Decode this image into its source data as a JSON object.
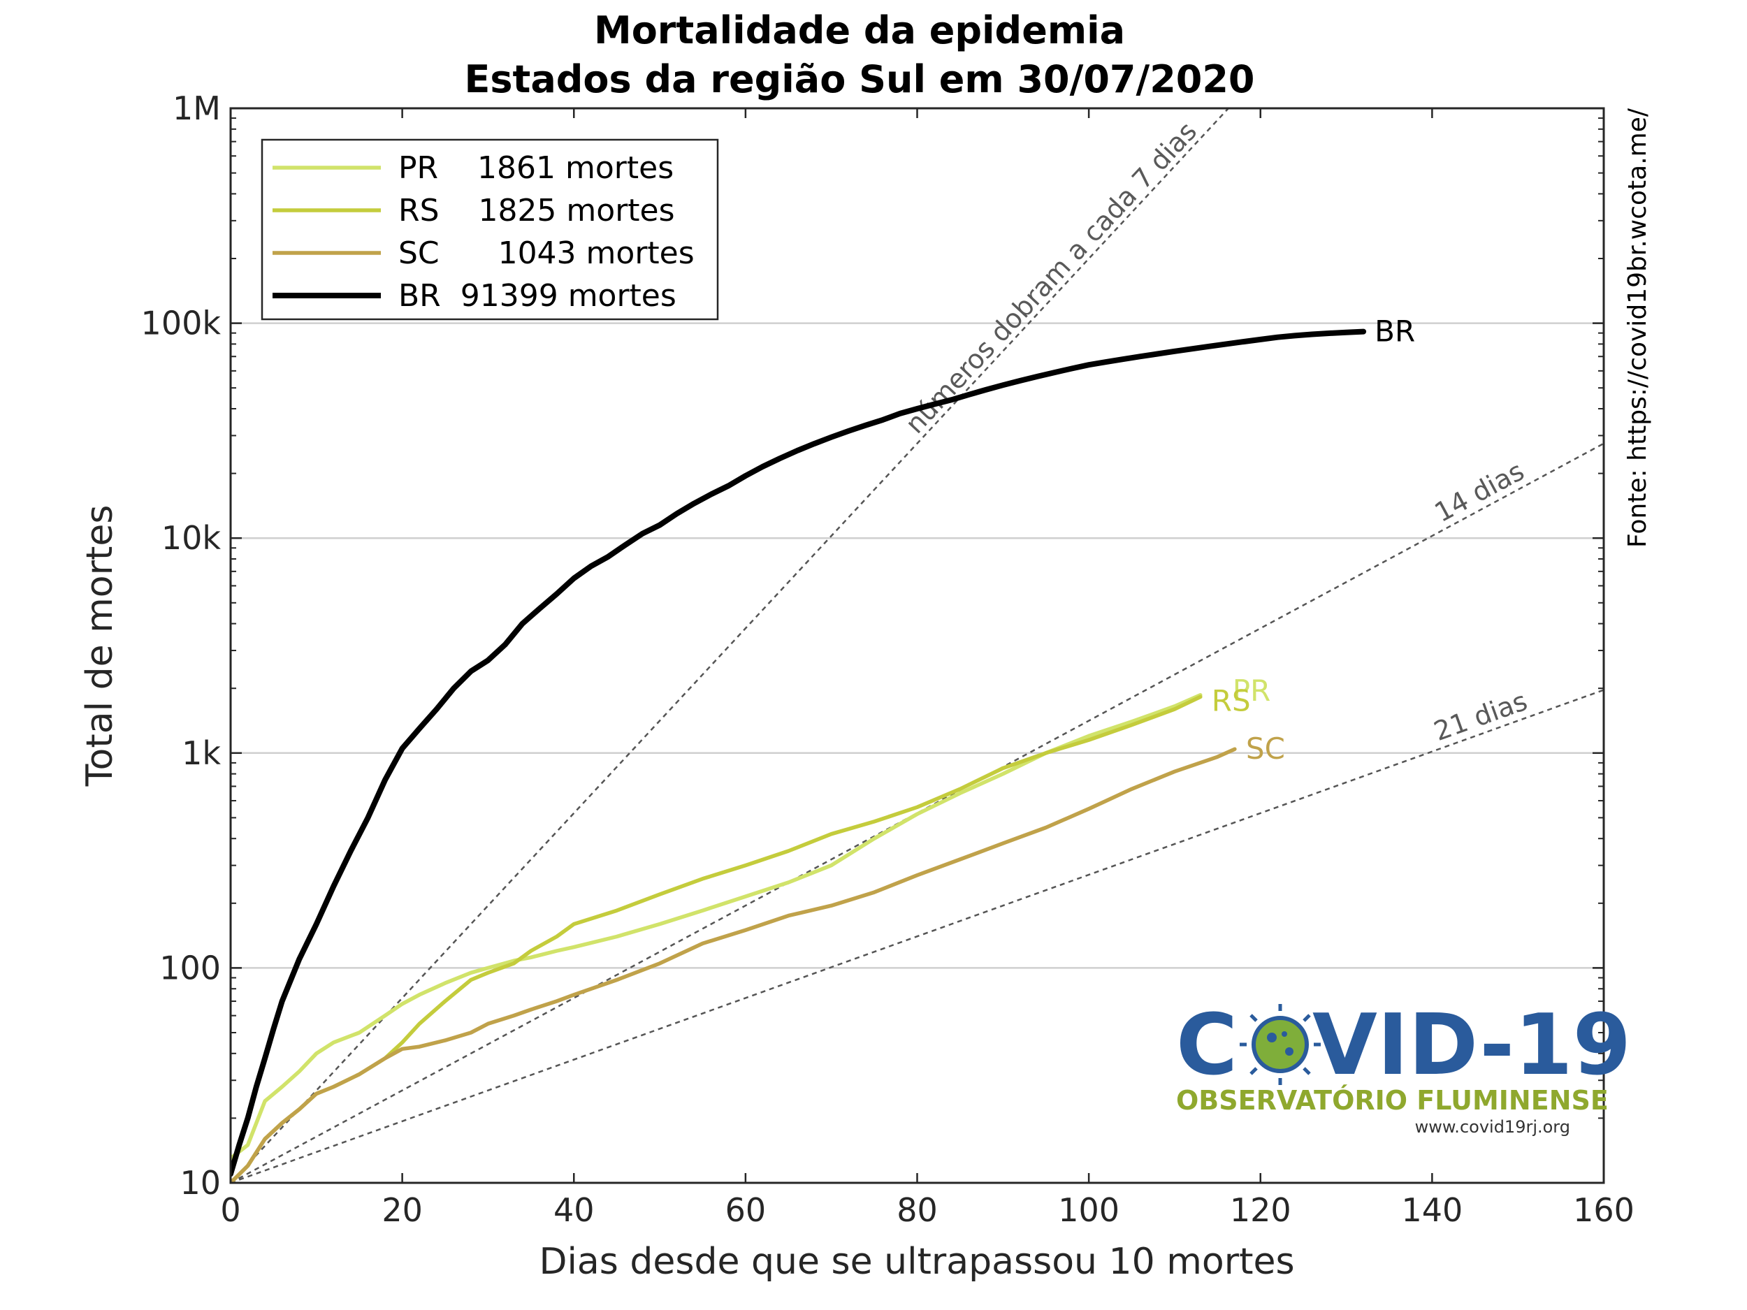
{
  "chart_data": {
    "type": "line",
    "title": "Mortalidade da epidemia",
    "subtitle": "Estados da região Sul em 30/07/2020",
    "xlabel": "Dias desde que se ultrapassou 10 mortes",
    "ylabel": "Total de mortes",
    "xlim": [
      0,
      160
    ],
    "ylim": [
      10,
      1000000
    ],
    "yscale": "log",
    "xticks": [
      0,
      20,
      40,
      60,
      80,
      100,
      120,
      140,
      160
    ],
    "yticks": [
      10,
      100,
      1000,
      10000,
      100000,
      1000000
    ],
    "ytick_labels": [
      "10",
      "100",
      "1k",
      "10k",
      "100k",
      "1M"
    ],
    "grid": "horizontal",
    "legend_position": "top-left",
    "series": [
      {
        "name": "PR",
        "legend": "PR    1861 mortes",
        "end_label": "PR",
        "color": "#d1e36a",
        "x": [
          0,
          2,
          4,
          6,
          8,
          10,
          12,
          15,
          18,
          20,
          22,
          25,
          28,
          30,
          33,
          35,
          38,
          40,
          45,
          50,
          55,
          60,
          65,
          70,
          75,
          80,
          85,
          90,
          95,
          100,
          105,
          110,
          113
        ],
        "y": [
          13,
          15,
          24,
          28,
          33,
          40,
          45,
          50,
          60,
          68,
          75,
          85,
          95,
          100,
          108,
          112,
          120,
          125,
          140,
          160,
          185,
          215,
          250,
          300,
          400,
          520,
          650,
          800,
          1000,
          1200,
          1400,
          1650,
          1861
        ]
      },
      {
        "name": "RS",
        "legend": "RS    1825 mortes",
        "end_label": "RS",
        "color": "#c4cc3c",
        "x": [
          0,
          2,
          4,
          6,
          8,
          10,
          12,
          15,
          18,
          20,
          22,
          25,
          28,
          30,
          33,
          35,
          38,
          40,
          45,
          50,
          55,
          60,
          65,
          70,
          75,
          80,
          85,
          90,
          95,
          100,
          105,
          110,
          113
        ],
        "y": [
          10,
          12,
          16,
          19,
          22,
          26,
          28,
          32,
          38,
          45,
          55,
          70,
          88,
          95,
          105,
          120,
          140,
          160,
          185,
          220,
          260,
          300,
          350,
          420,
          480,
          560,
          680,
          850,
          1000,
          1150,
          1350,
          1600,
          1825
        ]
      },
      {
        "name": "SC",
        "legend": "SC      1043 mortes",
        "end_label": "SC",
        "color": "#c0a24a",
        "x": [
          0,
          2,
          4,
          6,
          8,
          10,
          12,
          15,
          18,
          20,
          22,
          25,
          28,
          30,
          33,
          35,
          38,
          40,
          45,
          50,
          55,
          60,
          65,
          70,
          75,
          80,
          85,
          90,
          95,
          100,
          105,
          110,
          115,
          117
        ],
        "y": [
          10,
          12,
          16,
          19,
          22,
          26,
          28,
          32,
          38,
          42,
          43,
          46,
          50,
          55,
          60,
          64,
          70,
          75,
          88,
          105,
          130,
          150,
          175,
          195,
          225,
          270,
          320,
          380,
          450,
          550,
          680,
          820,
          960,
          1043
        ]
      },
      {
        "name": "BR",
        "legend": "BR  91399 mortes",
        "end_label": "BR",
        "color": "#000000",
        "x": [
          0,
          1,
          2,
          3,
          4,
          5,
          6,
          8,
          10,
          12,
          14,
          16,
          18,
          20,
          22,
          24,
          26,
          28,
          30,
          32,
          34,
          36,
          38,
          40,
          42,
          44,
          46,
          48,
          50,
          52,
          54,
          56,
          58,
          60,
          62,
          64,
          66,
          68,
          70,
          72,
          74,
          76,
          78,
          80,
          82,
          84,
          86,
          88,
          90,
          92,
          94,
          96,
          98,
          100,
          102,
          104,
          106,
          108,
          110,
          112,
          114,
          116,
          118,
          120,
          122,
          124,
          126,
          128,
          130,
          132
        ],
        "y": [
          11,
          15,
          20,
          28,
          38,
          52,
          70,
          110,
          160,
          240,
          350,
          500,
          750,
          1050,
          1300,
          1600,
          2000,
          2400,
          2700,
          3200,
          4000,
          4700,
          5500,
          6500,
          7400,
          8200,
          9300,
          10500,
          11500,
          13000,
          14500,
          16000,
          17500,
          19500,
          21500,
          23500,
          25500,
          27500,
          29500,
          31500,
          33500,
          35500,
          38000,
          40000,
          42000,
          44000,
          46500,
          49000,
          51500,
          54000,
          56500,
          59000,
          61500,
          64000,
          66000,
          68000,
          70000,
          72000,
          74000,
          76000,
          78000,
          80000,
          82000,
          84000,
          86000,
          87500,
          88800,
          89800,
          90600,
          91399
        ]
      }
    ],
    "reference_lines": [
      {
        "label": "números dobram a cada 7 dias",
        "doubling_days": 7
      },
      {
        "label": "14 dias",
        "doubling_days": 14
      },
      {
        "label": "21 dias",
        "doubling_days": 21
      }
    ],
    "source": "Fonte: https://covid19br.wcota.me/"
  },
  "logo": {
    "title": "COVID-19",
    "subtitle": "OBSERVATÓRIO FLUMINENSE",
    "url": "www.covid19rj.org",
    "color_title": "#2a5b9c",
    "color_subtitle": "#8fa82e",
    "icon": "virus-icon"
  }
}
